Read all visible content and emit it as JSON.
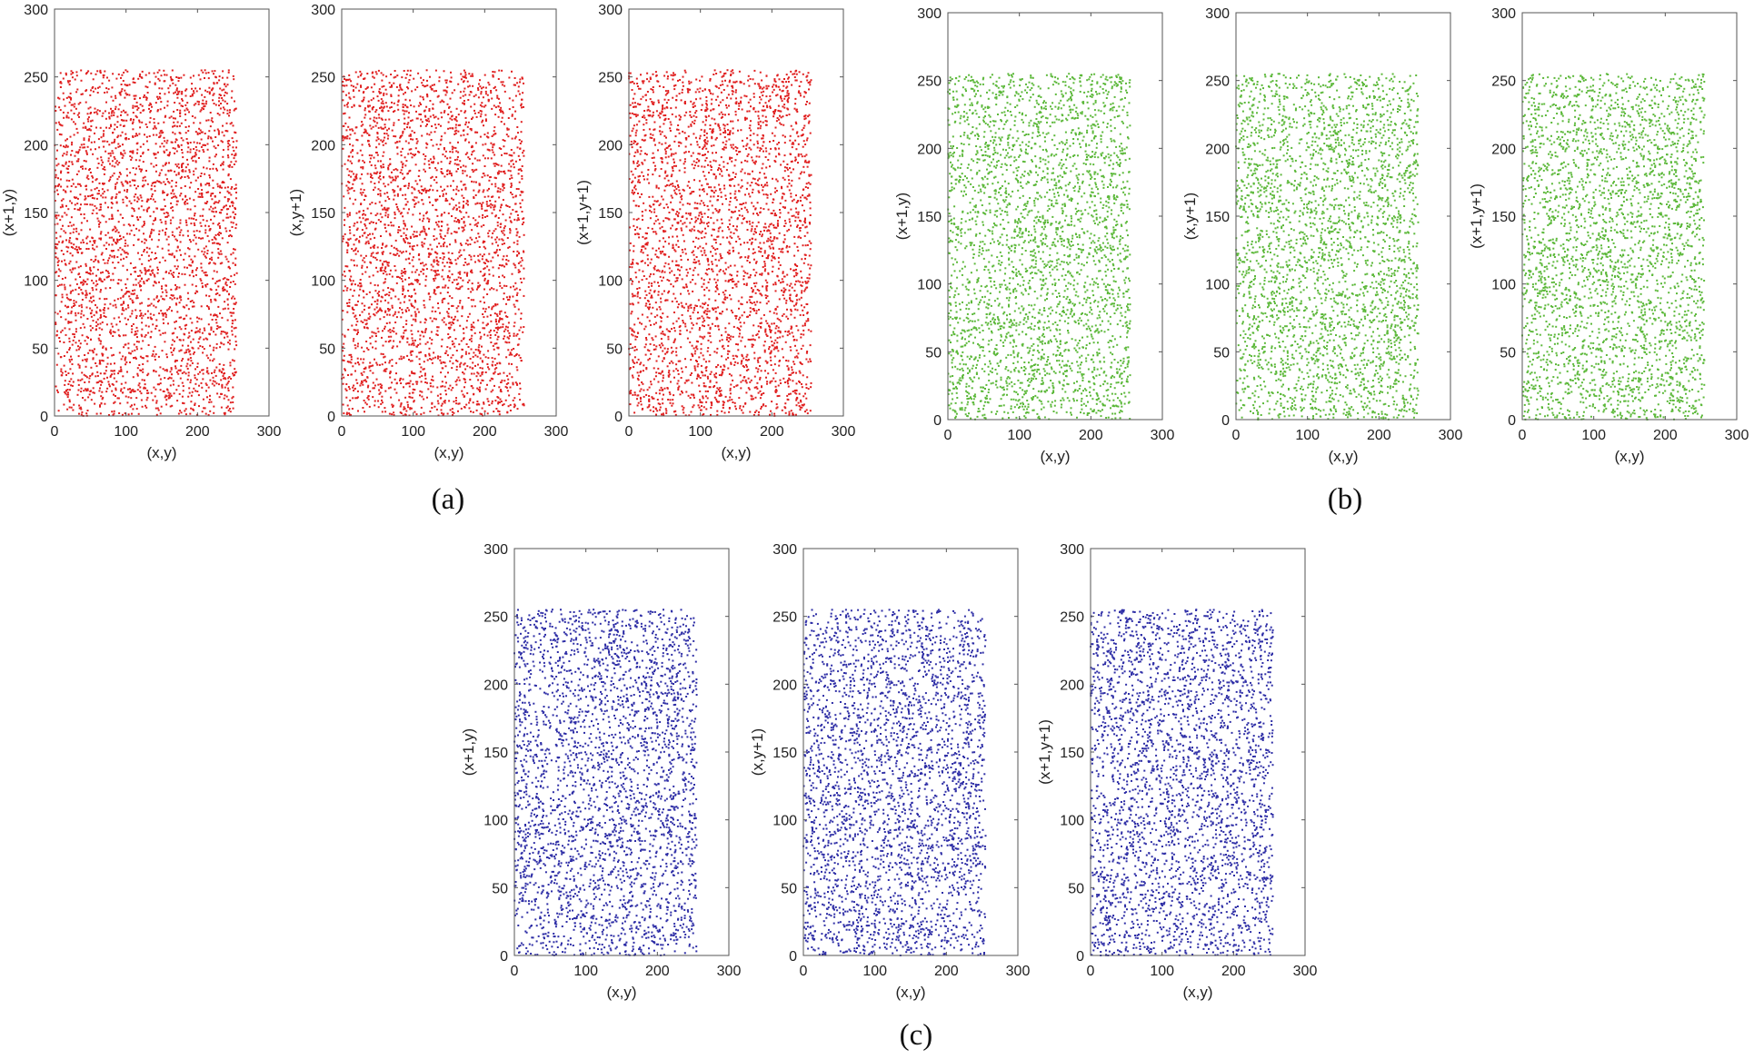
{
  "panels": [
    {
      "label": "(a)",
      "color": "#e02020"
    },
    {
      "label": "(b)",
      "color": "#5cb83a"
    },
    {
      "label": "(c)",
      "color": "#2e2ea6"
    }
  ],
  "chart_data": [
    {
      "type": "scatter",
      "panel": "(a)",
      "color": "#e02020",
      "xlabel": "(x,y)",
      "ylabel": "(x+1,y)",
      "xlim": [
        0,
        300
      ],
      "ylim": [
        0,
        300
      ],
      "xticks": [
        0,
        100,
        200,
        300
      ],
      "yticks": [
        0,
        50,
        100,
        150,
        200,
        250,
        300
      ],
      "data_range": [
        0,
        255
      ],
      "n_points": 3000
    },
    {
      "type": "scatter",
      "panel": "(a)",
      "color": "#e02020",
      "xlabel": "(x,y)",
      "ylabel": "(x,y+1)",
      "xlim": [
        0,
        300
      ],
      "ylim": [
        0,
        300
      ],
      "xticks": [
        0,
        100,
        200,
        300
      ],
      "yticks": [
        0,
        50,
        100,
        150,
        200,
        250,
        300
      ],
      "data_range": [
        0,
        255
      ],
      "n_points": 3000
    },
    {
      "type": "scatter",
      "panel": "(a)",
      "color": "#e02020",
      "xlabel": "(x,y)",
      "ylabel": "(x+1,y+1)",
      "xlim": [
        0,
        300
      ],
      "ylim": [
        0,
        300
      ],
      "xticks": [
        0,
        100,
        200,
        300
      ],
      "yticks": [
        0,
        50,
        100,
        150,
        200,
        250,
        300
      ],
      "data_range": [
        0,
        255
      ],
      "n_points": 3000
    },
    {
      "type": "scatter",
      "panel": "(b)",
      "color": "#5cb83a",
      "xlabel": "(x,y)",
      "ylabel": "(x+1,y)",
      "xlim": [
        0,
        300
      ],
      "ylim": [
        0,
        300
      ],
      "xticks": [
        0,
        100,
        200,
        300
      ],
      "yticks": [
        0,
        50,
        100,
        150,
        200,
        250,
        300
      ],
      "data_range": [
        0,
        255
      ],
      "n_points": 3000
    },
    {
      "type": "scatter",
      "panel": "(b)",
      "color": "#5cb83a",
      "xlabel": "(x,y)",
      "ylabel": "(x,y+1)",
      "xlim": [
        0,
        300
      ],
      "ylim": [
        0,
        300
      ],
      "xticks": [
        0,
        100,
        200,
        300
      ],
      "yticks": [
        0,
        50,
        100,
        150,
        200,
        250,
        300
      ],
      "data_range": [
        0,
        255
      ],
      "n_points": 3000
    },
    {
      "type": "scatter",
      "panel": "(b)",
      "color": "#5cb83a",
      "xlabel": "(x,y)",
      "ylabel": "(x+1,y+1)",
      "xlim": [
        0,
        300
      ],
      "ylim": [
        0,
        300
      ],
      "xticks": [
        0,
        100,
        200,
        300
      ],
      "yticks": [
        0,
        50,
        100,
        150,
        200,
        250,
        300
      ],
      "data_range": [
        0,
        255
      ],
      "n_points": 3000
    },
    {
      "type": "scatter",
      "panel": "(c)",
      "color": "#2e2ea6",
      "xlabel": "(x,y)",
      "ylabel": "(x+1,y)",
      "xlim": [
        0,
        300
      ],
      "ylim": [
        0,
        300
      ],
      "xticks": [
        0,
        100,
        200,
        300
      ],
      "yticks": [
        0,
        50,
        100,
        150,
        200,
        250,
        300
      ],
      "data_range": [
        0,
        255
      ],
      "n_points": 3000
    },
    {
      "type": "scatter",
      "panel": "(c)",
      "color": "#2e2ea6",
      "xlabel": "(x,y)",
      "ylabel": "(x,y+1)",
      "xlim": [
        0,
        300
      ],
      "ylim": [
        0,
        300
      ],
      "xticks": [
        0,
        100,
        200,
        300
      ],
      "yticks": [
        0,
        50,
        100,
        150,
        200,
        250,
        300
      ],
      "data_range": [
        0,
        255
      ],
      "n_points": 3000
    },
    {
      "type": "scatter",
      "panel": "(c)",
      "color": "#2e2ea6",
      "xlabel": "(x,y)",
      "ylabel": "(x+1,y+1)",
      "xlim": [
        0,
        300
      ],
      "ylim": [
        0,
        300
      ],
      "xticks": [
        0,
        100,
        200,
        300
      ],
      "yticks": [
        0,
        50,
        100,
        150,
        200,
        250,
        300
      ],
      "data_range": [
        0,
        255
      ],
      "n_points": 3000
    }
  ]
}
